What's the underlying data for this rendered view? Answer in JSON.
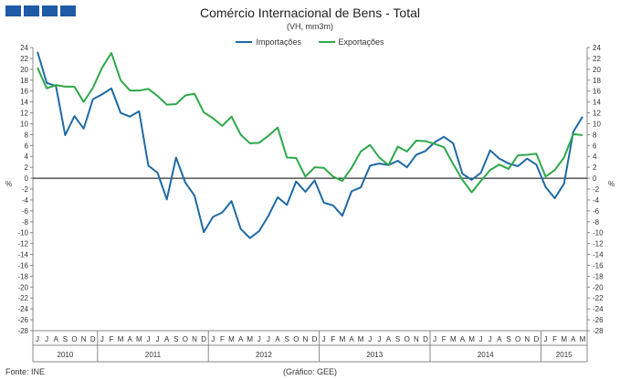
{
  "header": {
    "title": "Comércio Internacional de Bens - Total",
    "subtitle": "(VH, mm3m)"
  },
  "footer": {
    "source": "Fonte: INE",
    "credit": "(Gráfico: GEE)"
  },
  "colors": {
    "importacoes": "#1f6aa5",
    "exportacoes": "#2ea84a",
    "logo": "#1f5aa6",
    "zero_line": "#000000",
    "axis": "#888888"
  },
  "chart_data": {
    "type": "line",
    "ylabel_left": "%",
    "ylabel_right": "%",
    "ylim": [
      -28,
      24
    ],
    "ytick_step": 2,
    "grid": false,
    "legend_position": "top-center",
    "months": [
      "J",
      "J",
      "A",
      "S",
      "O",
      "N",
      "D",
      "J",
      "F",
      "M",
      "A",
      "M",
      "J",
      "J",
      "A",
      "S",
      "O",
      "N",
      "D",
      "J",
      "F",
      "M",
      "A",
      "M",
      "J",
      "J",
      "A",
      "S",
      "O",
      "N",
      "D",
      "J",
      "F",
      "M",
      "A",
      "M",
      "J",
      "J",
      "A",
      "S",
      "O",
      "N",
      "D",
      "J",
      "F",
      "M",
      "A",
      "M",
      "J",
      "J",
      "A",
      "S",
      "O",
      "N",
      "D",
      "J",
      "F",
      "M",
      "A",
      "M"
    ],
    "years": [
      {
        "label": "2010",
        "count": 7
      },
      {
        "label": "2011",
        "count": 12
      },
      {
        "label": "2012",
        "count": 12
      },
      {
        "label": "2013",
        "count": 12
      },
      {
        "label": "2014",
        "count": 12
      },
      {
        "label": "2015",
        "count": 5
      }
    ],
    "series": [
      {
        "name": "Importações",
        "color": "#1f6aa5",
        "values": [
          23.2,
          17.5,
          16.9,
          7.9,
          11.4,
          9.1,
          14.5,
          15.4,
          16.5,
          12.0,
          11.3,
          12.3,
          2.3,
          1.0,
          -3.9,
          3.8,
          -0.8,
          -3.2,
          -9.9,
          -7.1,
          -6.3,
          -4.2,
          -9.3,
          -11.0,
          -9.7,
          -6.9,
          -3.5,
          -4.9,
          -0.6,
          -2.5,
          -0.4,
          -4.5,
          -5.0,
          -6.9,
          -2.4,
          -1.7,
          2.3,
          2.7,
          2.4,
          3.2,
          2.0,
          4.3,
          5.0,
          6.6,
          7.6,
          6.4,
          0.8,
          -0.3,
          1.0,
          5.1,
          3.6,
          2.7,
          2.2,
          3.6,
          2.5,
          -1.6,
          -3.7,
          -1.0,
          8.5,
          11.3
        ]
      },
      {
        "name": "Exportações",
        "color": "#2ea84a",
        "values": [
          20.3,
          16.5,
          17.1,
          16.8,
          16.8,
          14.0,
          16.6,
          20.3,
          23.0,
          18.0,
          16.1,
          16.1,
          16.4,
          15.1,
          13.5,
          13.6,
          15.2,
          15.5,
          12.1,
          11.0,
          9.6,
          11.3,
          8.0,
          6.4,
          6.5,
          7.8,
          9.3,
          3.8,
          3.7,
          0.3,
          2.0,
          1.9,
          0.3,
          -0.5,
          1.9,
          4.9,
          6.1,
          3.8,
          2.4,
          5.8,
          4.9,
          6.9,
          6.8,
          6.3,
          5.7,
          2.6,
          -0.3,
          -2.6,
          -0.5,
          1.5,
          2.5,
          1.7,
          4.2,
          4.3,
          4.5,
          0.3,
          1.5,
          3.8,
          8.1,
          7.9
        ]
      }
    ]
  }
}
